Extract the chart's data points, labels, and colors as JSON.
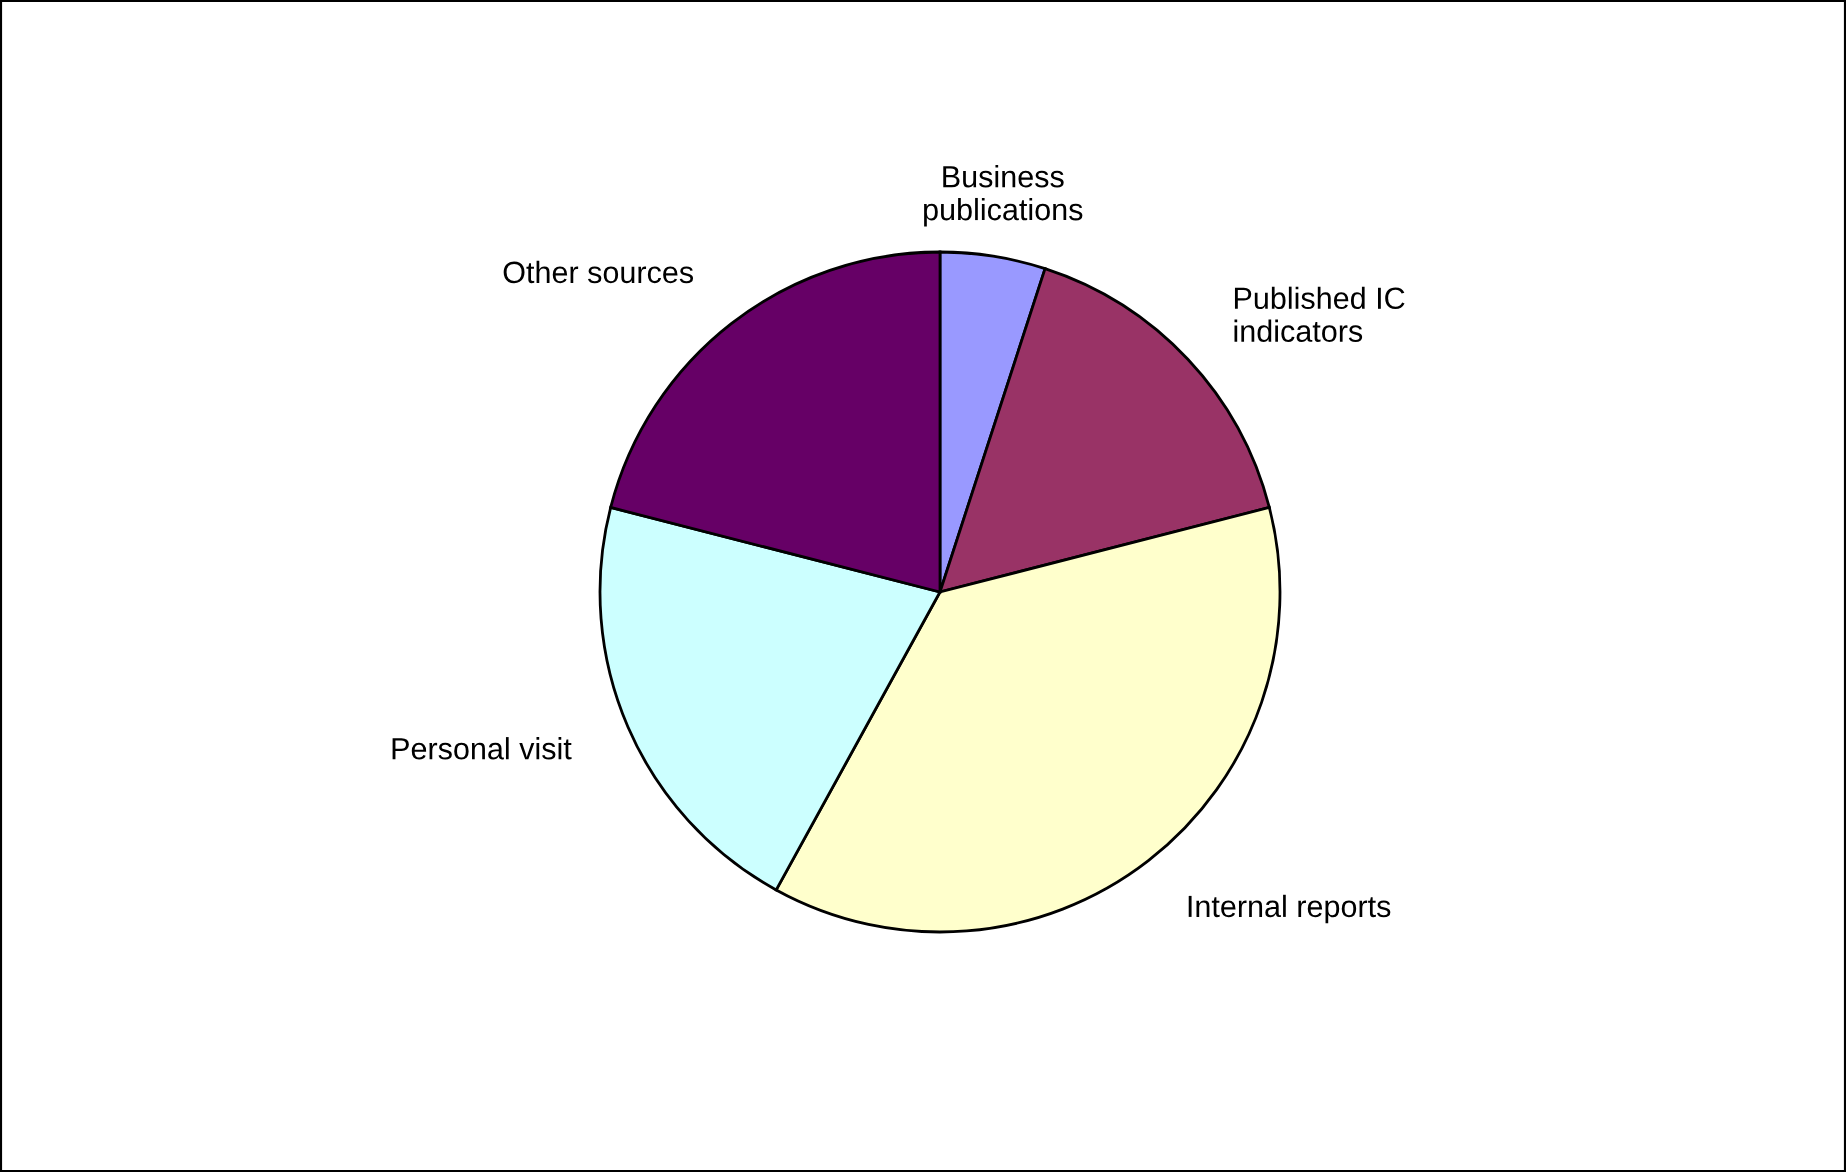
{
  "chart_data": {
    "type": "pie",
    "categories": [
      "Business\npublications",
      "Published IC\nindicators",
      "Internal reports",
      "Personal visit",
      "Other sources"
    ],
    "values": [
      5,
      16,
      37,
      21,
      21
    ],
    "colors": [
      "#9999ff",
      "#993366",
      "#ffffcc",
      "#ccffff",
      "#660066"
    ]
  }
}
